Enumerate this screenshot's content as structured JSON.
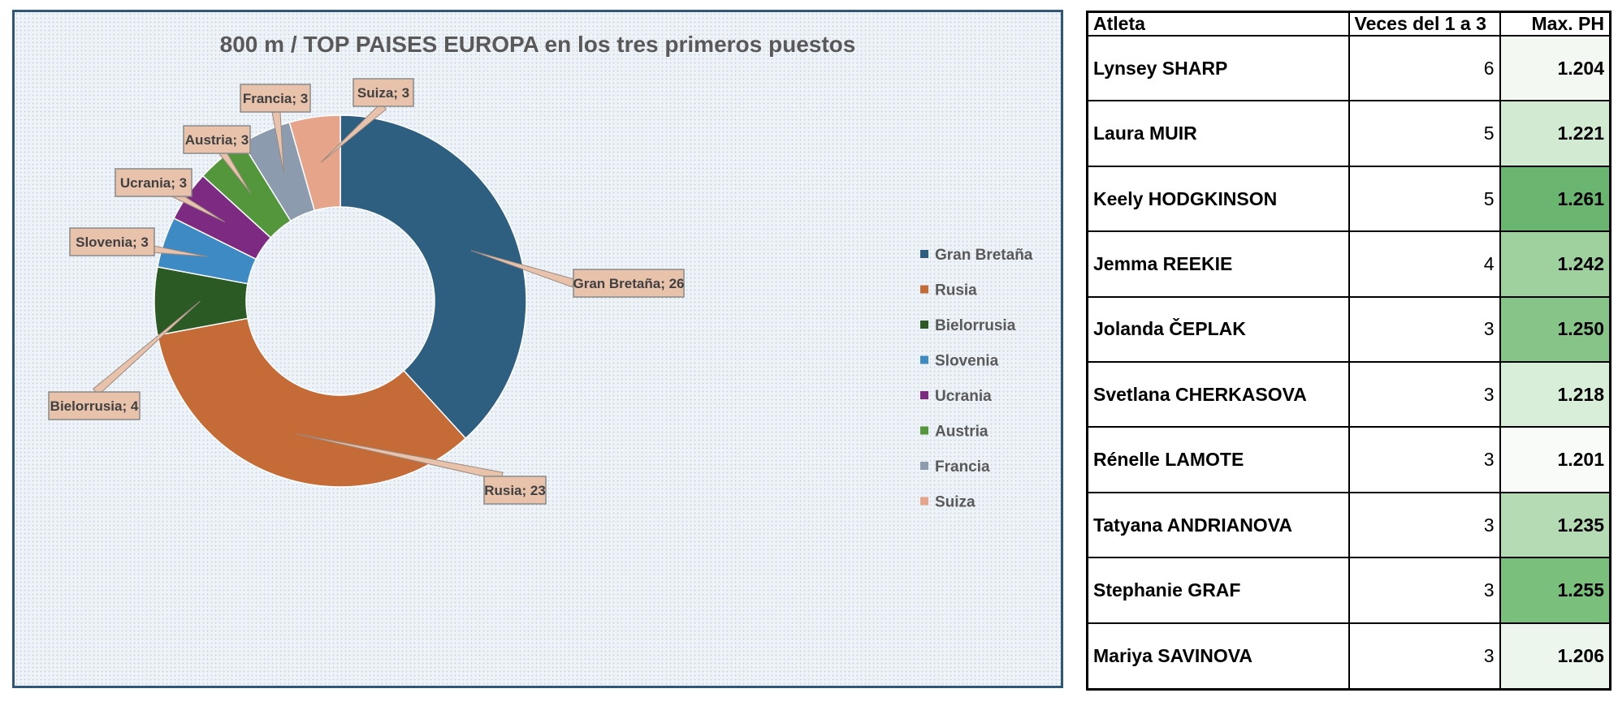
{
  "chart_data": {
    "type": "pie",
    "variant": "donut",
    "title": "800 m / TOP  PAISES EUROPA en los tres primeros puestos",
    "categories": [
      "Gran Bretaña",
      "Rusia",
      "Bielorrusia",
      "Slovenia",
      "Ucrania",
      "Austria",
      "Francia",
      "Suiza"
    ],
    "values": [
      26,
      23,
      4,
      3,
      3,
      3,
      3,
      3
    ],
    "data_labels": [
      "Gran Bretaña; 26",
      "Rusia; 23",
      "Bielorrusia; 4",
      "Slovenia; 3",
      "Ucrania; 3",
      "Austria; 3",
      "Francia; 3",
      "Suiza; 3"
    ],
    "colors": [
      "#2f5f80",
      "#c46b37",
      "#2b5a24",
      "#3d8ac4",
      "#7c2a82",
      "#53963c",
      "#8c9cae",
      "#e6a58b"
    ],
    "legend_position": "right"
  },
  "table": {
    "headers": [
      "Atleta",
      "Veces del 1 a 3",
      "Max. PH"
    ],
    "rows": [
      {
        "atleta": "Lynsey SHARP",
        "veces": "6",
        "max_ph": "1.204",
        "color": "#f3f8f3"
      },
      {
        "atleta": "Laura MUIR",
        "veces": "5",
        "max_ph": "1.221",
        "color": "#d2ead2"
      },
      {
        "atleta": "Keely HODGKINSON",
        "veces": "5",
        "max_ph": "1.261",
        "color": "#6ab56f"
      },
      {
        "atleta": "Jemma REEKIE",
        "veces": "4",
        "max_ph": "1.242",
        "color": "#9fd19f"
      },
      {
        "atleta": "Jolanda ČEPLAK",
        "veces": "3",
        "max_ph": "1.250",
        "color": "#86c487"
      },
      {
        "atleta": "Svetlana CHERKASOVA",
        "veces": "3",
        "max_ph": "1.218",
        "color": "#d9eed9"
      },
      {
        "atleta": "Rénelle LAMOTE",
        "veces": "3",
        "max_ph": "1.201",
        "color": "#f8fbf8"
      },
      {
        "atleta": "Tatyana ANDRIANOVA",
        "veces": "3",
        "max_ph": "1.235",
        "color": "#b4dbb4"
      },
      {
        "atleta": "Stephanie GRAF",
        "veces": "3",
        "max_ph": "1.255",
        "color": "#7bbf7d"
      },
      {
        "atleta": "Mariya SAVINOVA",
        "veces": "3",
        "max_ph": "1.206",
        "color": "#edf6ed"
      }
    ]
  }
}
